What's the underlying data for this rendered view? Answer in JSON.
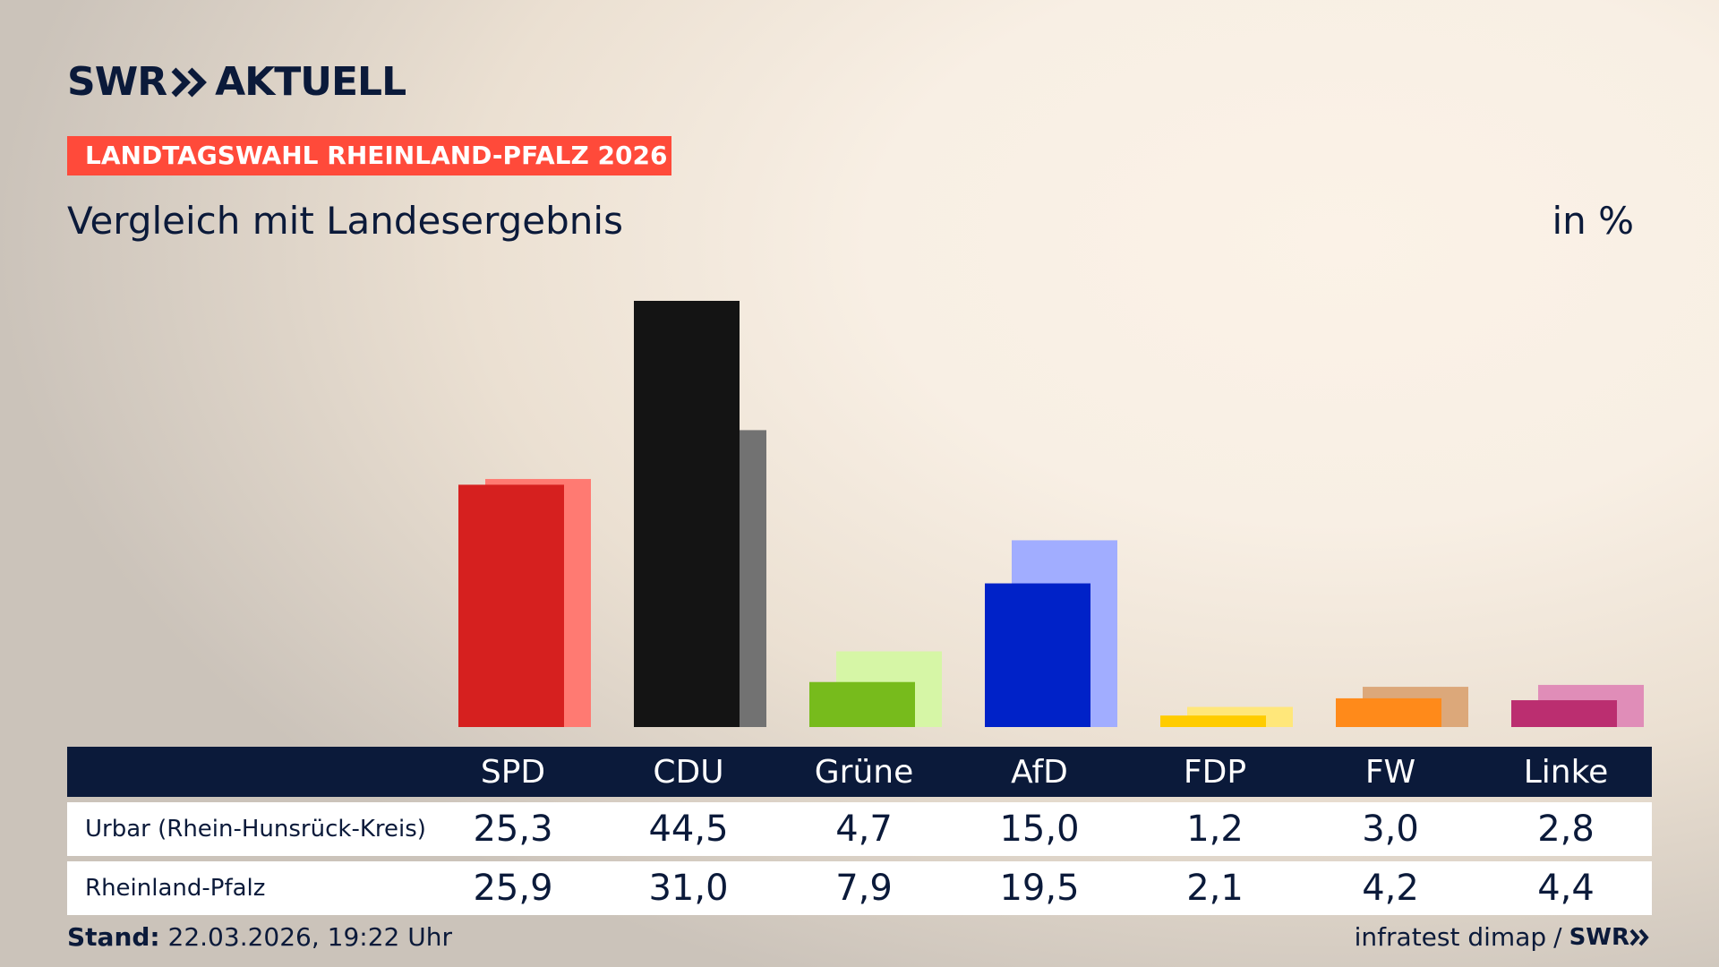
{
  "header": {
    "brand": "SWR",
    "brand_suffix": "AKTUELL",
    "tag": "LANDTAGSWAHL RHEINLAND-PFALZ 2026",
    "subtitle": "Vergleich mit Landesergebnis",
    "unit": "in %"
  },
  "table": {
    "rows": [
      {
        "label": "Urbar (Rhein-Hunsrück-Kreis)",
        "values": [
          "25,3",
          "44,5",
          "4,7",
          "15,0",
          "1,2",
          "3,0",
          "2,8"
        ]
      },
      {
        "label": "Rheinland-Pfalz",
        "values": [
          "25,9",
          "31,0",
          "7,9",
          "19,5",
          "2,1",
          "4,2",
          "4,4"
        ]
      }
    ]
  },
  "footer": {
    "stand_label": "Stand:",
    "stand_value": "22.03.2026, 19:22 Uhr",
    "source": "infratest dimap",
    "separator": "/",
    "source_brand": "SWR"
  },
  "chart_data": {
    "type": "bar",
    "categories": [
      "SPD",
      "CDU",
      "Grüne",
      "AfD",
      "FDP",
      "FW",
      "Linke"
    ],
    "series": [
      {
        "name": "Urbar (Rhein-Hunsrück-Kreis)",
        "values": [
          25.3,
          44.5,
          4.7,
          15.0,
          1.2,
          3.0,
          2.8
        ],
        "colors": [
          "#d6201f",
          "#141414",
          "#77bb1c",
          "#0022c8",
          "#ffcc00",
          "#ff8a1a",
          "#bb2e70"
        ]
      },
      {
        "name": "Rheinland-Pfalz",
        "values": [
          25.9,
          31.0,
          7.9,
          19.5,
          2.1,
          4.2,
          4.4
        ],
        "colors": [
          "#ff7a72",
          "#727272",
          "#d6f6a6",
          "#a1adff",
          "#ffe77a",
          "#dca87a",
          "#e08db8"
        ]
      }
    ],
    "ylim": [
      0,
      44.5
    ],
    "grid": false
  }
}
